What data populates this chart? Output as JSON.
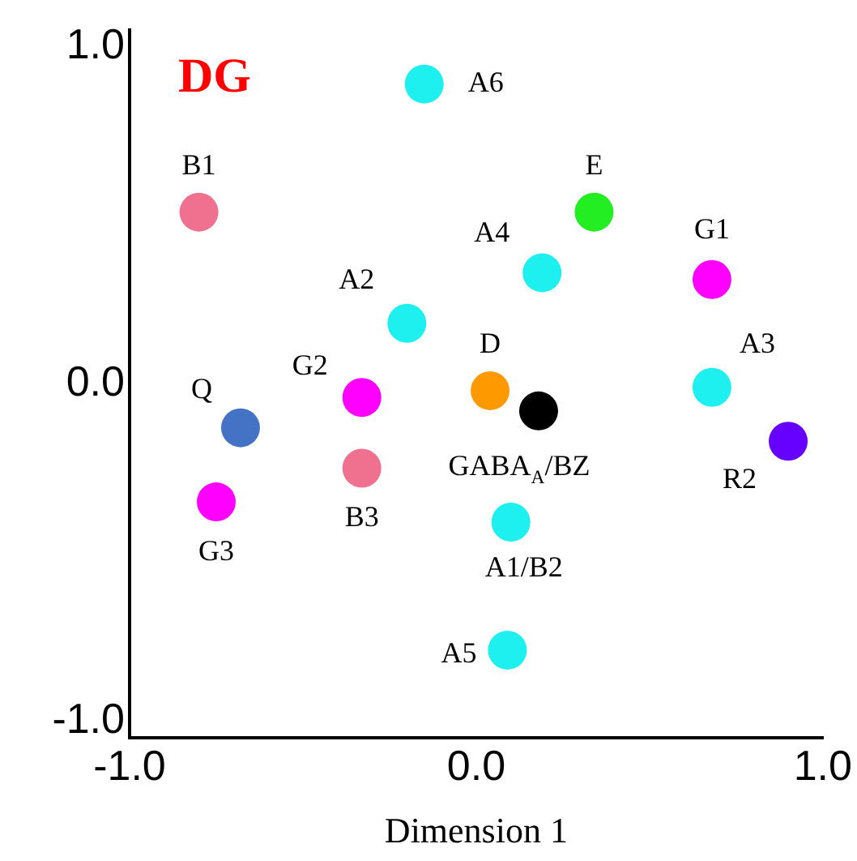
{
  "chart_data": {
    "type": "scatter",
    "title": "DG",
    "xlabel": "Dimension 1",
    "xlim": [
      -1.0,
      1.0
    ],
    "ylim": [
      -1.05,
      1.05
    ],
    "xticks": [
      {
        "value": -1,
        "label": "-1.0"
      },
      {
        "value": 0,
        "label": "0.0"
      },
      {
        "value": 1,
        "label": "1.0"
      }
    ],
    "yticks": [
      {
        "value": -1,
        "label": "-1.0"
      },
      {
        "value": 0,
        "label": "0.0"
      },
      {
        "value": 1,
        "label": "1.0"
      }
    ],
    "grid": false,
    "legend": false,
    "marker": "circle",
    "series": [
      {
        "name": "A6",
        "color": "#1ef0f0",
        "x": [
          -0.15
        ],
        "values": [
          0.89
        ]
      },
      {
        "name": "B1",
        "color": "#f07090",
        "x": [
          -0.8
        ],
        "values": [
          0.51
        ]
      },
      {
        "name": "E",
        "color": "#22ee22",
        "x": [
          0.34
        ],
        "values": [
          0.51
        ]
      },
      {
        "name": "A4",
        "color": "#1ef0f0",
        "x": [
          0.19
        ],
        "values": [
          0.33
        ]
      },
      {
        "name": "G1",
        "color": "#ff00ff",
        "x": [
          0.68
        ],
        "values": [
          0.31
        ]
      },
      {
        "name": "A2",
        "color": "#1ef0f0",
        "x": [
          -0.2
        ],
        "values": [
          0.18
        ]
      },
      {
        "name": "D",
        "color": "#ff9900",
        "x": [
          0.04
        ],
        "values": [
          -0.02
        ]
      },
      {
        "name": "GABA$_{A}$/BZ",
        "color": "#000000",
        "x": [
          0.18
        ],
        "values": [
          -0.08
        ]
      },
      {
        "name": "G2",
        "color": "#ff00ff",
        "x": [
          -0.33
        ],
        "values": [
          -0.04
        ]
      },
      {
        "name": "A3",
        "color": "#1ef0f0",
        "x": [
          0.68
        ],
        "values": [
          -0.01
        ]
      },
      {
        "name": "Q",
        "color": "#4472c4",
        "x": [
          -0.68
        ],
        "values": [
          -0.13
        ]
      },
      {
        "name": "R2",
        "color": "#6600ff",
        "x": [
          0.9
        ],
        "values": [
          -0.17
        ]
      },
      {
        "name": "B3",
        "color": "#f07090",
        "x": [
          -0.33
        ],
        "values": [
          -0.25
        ]
      },
      {
        "name": "G3",
        "color": "#ff00ff",
        "x": [
          -0.75
        ],
        "values": [
          -0.35
        ]
      },
      {
        "name": "A1/B2",
        "color": "#1ef0f0",
        "x": [
          0.1
        ],
        "values": [
          -0.41
        ]
      },
      {
        "name": "A5",
        "color": "#1ef0f0",
        "x": [
          0.09
        ],
        "values": [
          -0.79
        ]
      }
    ]
  }
}
